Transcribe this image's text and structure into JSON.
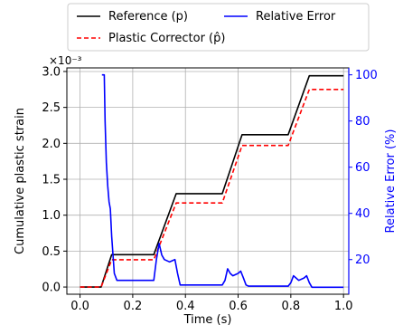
{
  "chart_data": {
    "type": "line",
    "xlabel": "Time (s)",
    "ylabel_left": "Cumulative plastic strain",
    "ylabel_right": "Relative Error (%)",
    "left_axis_multiplier": "×10⁻³",
    "xlim": [
      -0.05,
      1.02
    ],
    "ylim_left": [
      -0.1,
      3.05
    ],
    "ylim_right": [
      5,
      103
    ],
    "x_ticks": [
      0.0,
      0.2,
      0.4,
      0.6,
      0.8,
      1.0
    ],
    "x_tick_labels": [
      "0.0",
      "0.2",
      "0.4",
      "0.6",
      "0.8",
      "1.0"
    ],
    "left_ticks": [
      0.0,
      0.5,
      1.0,
      1.5,
      2.0,
      2.5,
      3.0
    ],
    "left_tick_labels": [
      "0.0",
      "0.5",
      "1.0",
      "1.5",
      "2.0",
      "2.5",
      "3.0"
    ],
    "right_ticks": [
      20,
      40,
      60,
      80,
      100
    ],
    "right_tick_labels": [
      "20",
      "40",
      "60",
      "80",
      "100"
    ],
    "grid": true,
    "legend_position": "top",
    "legend_columns": 2,
    "series": [
      {
        "name": "Reference (p)",
        "color": "#000000",
        "dash": "solid",
        "axis": "left",
        "x": [
          0.0,
          0.08,
          0.12,
          0.28,
          0.365,
          0.54,
          0.615,
          0.79,
          0.87,
          1.0
        ],
        "y": [
          0.0,
          0.0,
          0.45,
          0.45,
          1.3,
          1.3,
          2.12,
          2.12,
          2.94,
          2.94
        ]
      },
      {
        "name": "Plastic Corrector (p̂)",
        "color": "#ff0000",
        "dash": "dashed",
        "axis": "left",
        "x": [
          0.0,
          0.08,
          0.12,
          0.28,
          0.365,
          0.54,
          0.615,
          0.79,
          0.87,
          1.0
        ],
        "y": [
          0.0,
          0.0,
          0.38,
          0.38,
          1.17,
          1.17,
          1.97,
          1.97,
          2.75,
          2.75
        ]
      },
      {
        "name": "Relative Error",
        "color": "#0000ff",
        "dash": "solid",
        "axis": "right",
        "x": [
          0.083,
          0.092,
          0.095,
          0.1,
          0.105,
          0.11,
          0.115,
          0.12,
          0.13,
          0.14,
          0.28,
          0.29,
          0.3,
          0.31,
          0.32,
          0.34,
          0.35,
          0.36,
          0.37,
          0.38,
          0.54,
          0.55,
          0.56,
          0.57,
          0.58,
          0.6,
          0.61,
          0.62,
          0.63,
          0.64,
          0.79,
          0.8,
          0.81,
          0.82,
          0.83,
          0.85,
          0.86,
          0.87,
          0.88,
          0.89,
          1.0
        ],
        "y": [
          100,
          100,
          80,
          62,
          52,
          45,
          42,
          30,
          14,
          11,
          11,
          20,
          27,
          22,
          20,
          19,
          19.5,
          20,
          14,
          9,
          9,
          11,
          16,
          14,
          13,
          14,
          15,
          12,
          9,
          8.5,
          8.5,
          10,
          13,
          12,
          11,
          12,
          13,
          10,
          8,
          8,
          8
        ]
      }
    ],
    "legend": [
      {
        "label": "Reference (p)",
        "color": "#000000",
        "dash": "solid"
      },
      {
        "label": "Relative Error",
        "color": "#0000ff",
        "dash": "solid"
      },
      {
        "label": "Plastic Corrector (p̂)",
        "color": "#ff0000",
        "dash": "dashed"
      }
    ]
  }
}
